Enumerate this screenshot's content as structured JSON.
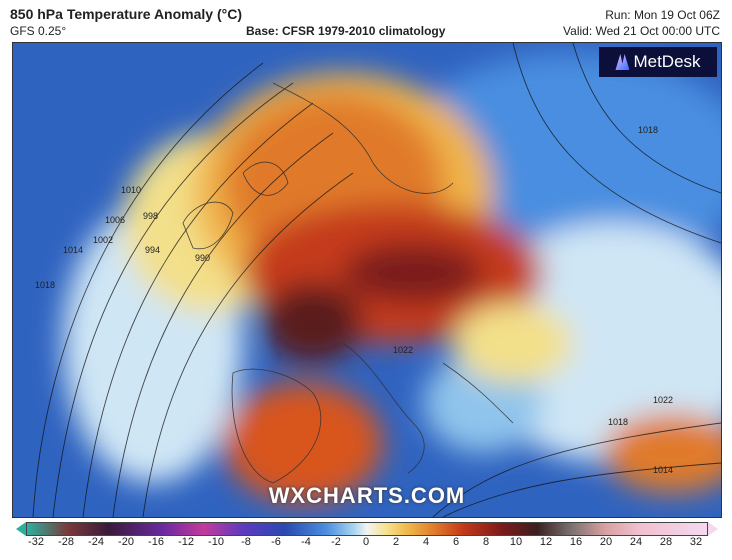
{
  "header": {
    "title": "850 hPa Temperature Anomaly (°C)",
    "model": "GFS 0.25°",
    "base": "Base: CFSR 1979-2010 climatology",
    "run": "Run: Mon 19 Oct 06Z",
    "valid": "Valid: Wed 21 Oct 00:00 UTC"
  },
  "logo": {
    "text": "MetDesk",
    "icon": "metdesk-logo-icon"
  },
  "watermark": "WXCHARTS.COM",
  "colorbar": {
    "ticks": [
      "-32",
      "-28",
      "-24",
      "-20",
      "-16",
      "-12",
      "-10",
      "-8",
      "-6",
      "-4",
      "-2",
      "0",
      "2",
      "4",
      "6",
      "8",
      "10",
      "12",
      "16",
      "20",
      "24",
      "28",
      "32"
    ]
  },
  "isobars": [
    "1002",
    "1010",
    "1006",
    "998",
    "994",
    "990",
    "1014",
    "1018",
    "1022",
    "1018",
    "1014",
    "1022",
    "1018"
  ],
  "map_colors": {
    "ocean_cold": "#2f63c0",
    "cool": "#8fc4ec",
    "neutral": "#f1f1f1",
    "warm": "#f0b44a",
    "hot": "#d8541e",
    "very_hot": "#7a1a1a",
    "extreme": "#3a2020"
  }
}
